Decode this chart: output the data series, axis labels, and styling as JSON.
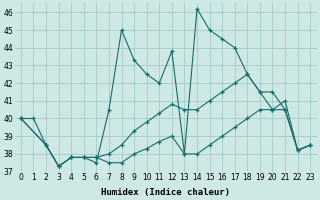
{
  "xlabel": "Humidex (Indice chaleur)",
  "ylabel": "",
  "background_color": "#cde8e5",
  "grid_color": "#a8d0cc",
  "line_color": "#1a6b6b",
  "xlim": [
    -0.5,
    23.5
  ],
  "ylim": [
    37,
    46.5
  ],
  "yticks": [
    37,
    38,
    39,
    40,
    41,
    42,
    43,
    44,
    45,
    46
  ],
  "xticks": [
    0,
    1,
    2,
    3,
    4,
    5,
    6,
    7,
    8,
    9,
    10,
    11,
    12,
    13,
    14,
    15,
    16,
    17,
    18,
    19,
    20,
    21,
    22,
    23
  ],
  "lines": [
    {
      "x": [
        0,
        1,
        2,
        3,
        4,
        5,
        6,
        7,
        8,
        9,
        10,
        11,
        12,
        13,
        14,
        15,
        16,
        17,
        18,
        19,
        20,
        21,
        22,
        23
      ],
      "y": [
        40.0,
        40.0,
        38.5,
        37.3,
        37.8,
        37.8,
        37.5,
        40.5,
        45.0,
        43.3,
        42.5,
        42.0,
        43.8,
        38.0,
        46.2,
        45.0,
        44.5,
        44.0,
        42.5,
        41.5,
        40.5,
        41.0,
        38.2,
        38.5
      ]
    },
    {
      "x": [
        0,
        2,
        3,
        4,
        5,
        6,
        7,
        8,
        9,
        10,
        11,
        12,
        13,
        14,
        15,
        16,
        17,
        18,
        19,
        20,
        21,
        22,
        23
      ],
      "y": [
        40.0,
        38.5,
        37.3,
        37.8,
        37.8,
        37.8,
        38.0,
        38.5,
        39.3,
        39.8,
        40.3,
        40.8,
        40.5,
        40.5,
        41.0,
        41.5,
        42.0,
        42.5,
        41.5,
        41.5,
        40.5,
        38.2,
        38.5
      ]
    },
    {
      "x": [
        0,
        2,
        3,
        4,
        5,
        6,
        7,
        8,
        9,
        10,
        11,
        12,
        13,
        14,
        15,
        16,
        17,
        18,
        19,
        20,
        21,
        22,
        23
      ],
      "y": [
        40.0,
        38.5,
        37.3,
        37.8,
        37.8,
        37.8,
        37.5,
        37.5,
        38.0,
        38.3,
        38.7,
        39.0,
        38.0,
        38.0,
        38.5,
        39.0,
        39.5,
        40.0,
        40.5,
        40.5,
        40.5,
        38.2,
        38.5
      ]
    }
  ]
}
